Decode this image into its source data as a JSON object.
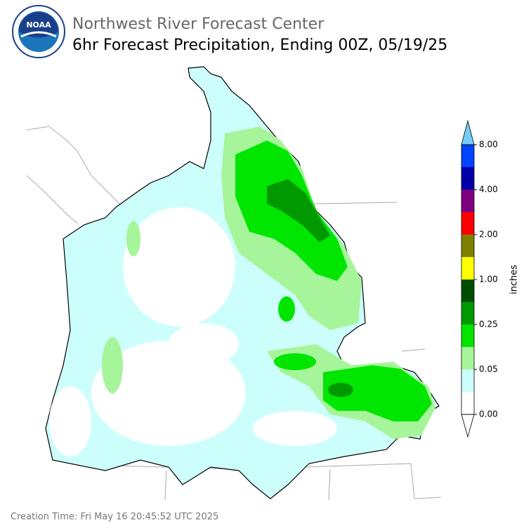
{
  "header": {
    "agency": "Northwest River Forecast Center",
    "title": "6hr Forecast Precipitation, Ending 00Z, 05/19/25",
    "logo_text": "NOAA"
  },
  "colorbar": {
    "label": "inches",
    "ticks": [
      "0.00",
      "0.05",
      "0.25",
      "1.00",
      "2.00",
      "4.00",
      "8.00"
    ],
    "colors": [
      "#ffffff",
      "#ccfffc",
      "#a6f59a",
      "#00e600",
      "#009900",
      "#004d00",
      "#ffff00",
      "#808000",
      "#ff0000",
      "#800080",
      "#0000a6",
      "#0044ff"
    ],
    "over_color": "#74ccf5",
    "under_color": "#ffffff"
  },
  "footer": {
    "creation_time": "Creation Time: Fri May 16 20:45:52 UTC 2025"
  }
}
